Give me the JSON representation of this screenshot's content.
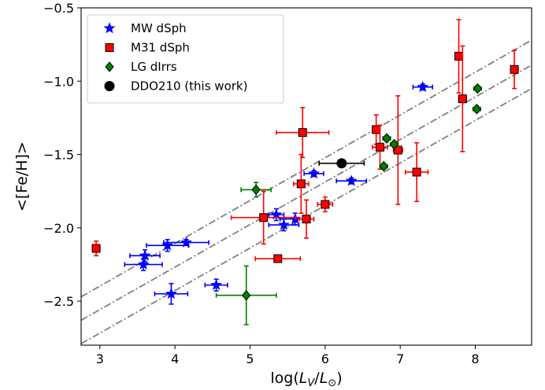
{
  "chart_data": {
    "type": "scatter",
    "title": "",
    "xlabel": "log(L_V/L_⊙)",
    "xlabel_parts": {
      "prefix": "log(",
      "main1": "L",
      "sub1": "V",
      "slash": "/",
      "main2": "L",
      "sub2": "⊙",
      "suffix": ")"
    },
    "ylabel": "<[Fe/H]>",
    "xlim": [
      2.75,
      8.75
    ],
    "ylim": [
      -2.8,
      -0.5
    ],
    "xticks": [
      3,
      4,
      5,
      6,
      7,
      8
    ],
    "yticks": [
      -2.5,
      -2.0,
      -1.5,
      -1.0,
      -0.5
    ],
    "xtick_labels": [
      "3",
      "4",
      "5",
      "6",
      "7",
      "8"
    ],
    "ytick_labels": [
      "−2.5",
      "−2.0",
      "−1.5",
      "−1.0",
      "−0.5"
    ],
    "grid": false,
    "legend_position": "upper-left",
    "relations": [
      {
        "style": "dash-dot",
        "color": "#808080",
        "x": [
          2.75,
          8.75
        ],
        "y": [
          -2.47,
          -0.72
        ]
      },
      {
        "style": "dash-dot",
        "color": "#808080",
        "x": [
          2.75,
          8.75
        ],
        "y": [
          -2.63,
          -0.89
        ]
      },
      {
        "style": "dash-dot",
        "color": "#808080",
        "x": [
          2.75,
          8.75
        ],
        "y": [
          -2.79,
          -1.05
        ]
      }
    ],
    "series": [
      {
        "name": "MW dSph",
        "marker": "star",
        "color": "#0000ff",
        "points": [
          {
            "x": 3.58,
            "y": -2.25,
            "xerr": 0.25,
            "yerr": 0.04
          },
          {
            "x": 3.6,
            "y": -2.19,
            "xerr": 0.2,
            "yerr": 0.04
          },
          {
            "x": 3.9,
            "y": -2.12,
            "xerr": 0.28,
            "yerr": 0.04
          },
          {
            "x": 4.15,
            "y": -2.1,
            "xerr": 0.3,
            "yerr": 0.02
          },
          {
            "x": 3.95,
            "y": -2.45,
            "xerr": 0.22,
            "yerr": 0.07
          },
          {
            "x": 4.55,
            "y": -2.39,
            "xerr": 0.15,
            "yerr": 0.04
          },
          {
            "x": 5.35,
            "y": -1.91,
            "xerr": 0.1,
            "yerr": 0.04
          },
          {
            "x": 5.45,
            "y": -1.98,
            "xerr": 0.2,
            "yerr": 0.04
          },
          {
            "x": 5.6,
            "y": -1.94,
            "xerr": 0.2,
            "yerr": 0.04
          },
          {
            "x": 5.85,
            "y": -1.63,
            "xerr": 0.13,
            "yerr": 0.02
          },
          {
            "x": 6.35,
            "y": -1.68,
            "xerr": 0.2,
            "yerr": 0.02
          },
          {
            "x": 7.3,
            "y": -1.04,
            "xerr": 0.13,
            "yerr": 0.02
          }
        ]
      },
      {
        "name": "M31 dSph",
        "marker": "square",
        "color": "#ff0000",
        "points": [
          {
            "x": 2.95,
            "y": -2.14,
            "xerr": 0.05,
            "yerr": 0.05
          },
          {
            "x": 5.18,
            "y": -1.93,
            "xerr": 0.43,
            "yerr": 0.18
          },
          {
            "x": 5.37,
            "y": -2.21,
            "xerr": 0.3,
            "yerr": 0.02
          },
          {
            "x": 5.68,
            "y": -1.7,
            "xerr": 0.1,
            "yerr": 0.2
          },
          {
            "x": 5.7,
            "y": -1.35,
            "xerr": 0.35,
            "yerr": 0.17
          },
          {
            "x": 5.75,
            "y": -1.94,
            "xerr": 0.1,
            "yerr": 0.13
          },
          {
            "x": 6.0,
            "y": -1.84,
            "xerr": 0.1,
            "yerr": 0.05
          },
          {
            "x": 6.68,
            "y": -1.33,
            "xerr": 0.05,
            "yerr": 0.1
          },
          {
            "x": 6.73,
            "y": -1.45,
            "xerr": 0.1,
            "yerr": 0.15
          },
          {
            "x": 6.97,
            "y": -1.47,
            "xerr": 0.06,
            "yerr": 0.37
          },
          {
            "x": 7.22,
            "y": -1.62,
            "xerr": 0.15,
            "yerr": 0.2
          },
          {
            "x": 7.78,
            "y": -0.83,
            "xerr": 0.05,
            "yerr": 0.25
          },
          {
            "x": 7.83,
            "y": -1.12,
            "xerr": 0.05,
            "yerr": 0.36
          },
          {
            "x": 8.52,
            "y": -0.92,
            "xerr": 0.05,
            "yerr": 0.13
          }
        ]
      },
      {
        "name": "LG dIrrs",
        "marker": "diamond",
        "color": "#008000",
        "points": [
          {
            "x": 5.08,
            "y": -1.74,
            "xerr": 0.2,
            "yerr": 0.05
          },
          {
            "x": 4.95,
            "y": -2.46,
            "xerr": 0.4,
            "yerr": 0.2
          },
          {
            "x": 6.78,
            "y": -1.58,
            "xerr": 0.05,
            "yerr": 0.02
          },
          {
            "x": 6.82,
            "y": -1.39,
            "xerr": 0.05,
            "yerr": 0.02
          },
          {
            "x": 6.92,
            "y": -1.43,
            "xerr": 0.05,
            "yerr": 0.02
          },
          {
            "x": 8.03,
            "y": -1.05,
            "xerr": 0.05,
            "yerr": 0.02
          },
          {
            "x": 8.02,
            "y": -1.19,
            "xerr": 0.05,
            "yerr": 0.02
          }
        ]
      },
      {
        "name": "DDO210 (this work)",
        "marker": "circle",
        "color": "#000000",
        "points": [
          {
            "x": 6.22,
            "y": -1.56,
            "xerr": 0.3,
            "yerr": 0.02
          }
        ]
      }
    ]
  }
}
